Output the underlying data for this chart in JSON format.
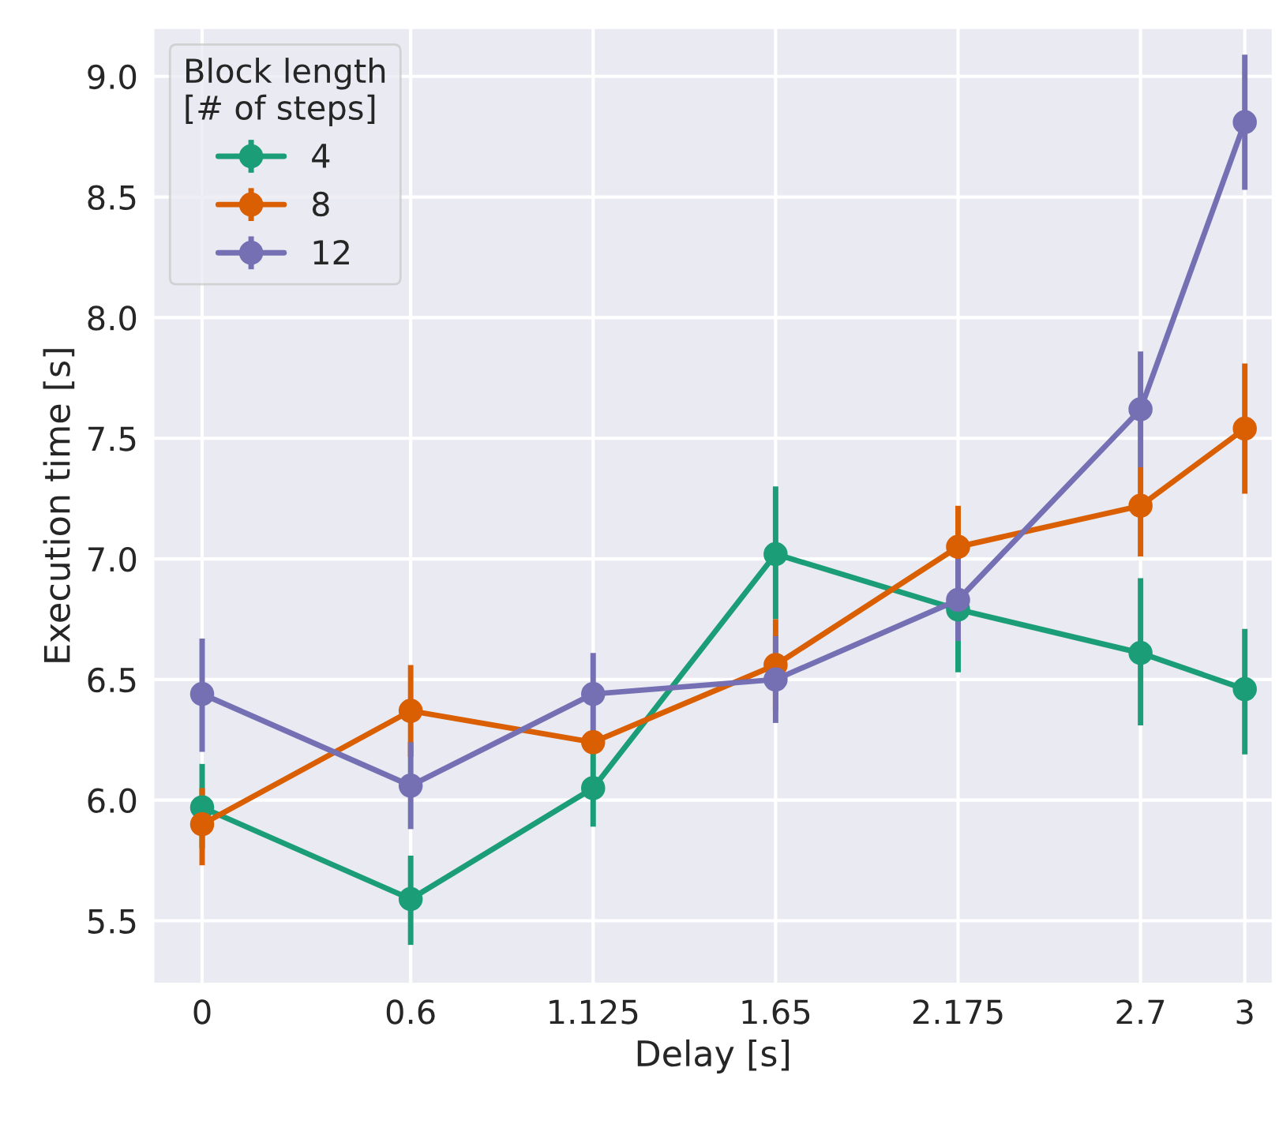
{
  "chart_data": {
    "type": "line",
    "xlabel": "Delay [s]",
    "ylabel": "Execution time [s]",
    "legend_title": "Block length\n[# of steps]",
    "x": [
      0,
      0.6,
      1.125,
      1.65,
      2.175,
      2.7,
      3
    ],
    "series": [
      {
        "name": "4",
        "color": "#1b9e77",
        "values": [
          5.97,
          5.59,
          6.05,
          7.02,
          6.79,
          6.61,
          6.46
        ],
        "errors": [
          [
            5.8,
            6.15
          ],
          [
            5.4,
            5.77
          ],
          [
            5.89,
            6.21
          ],
          [
            6.75,
            7.3
          ],
          [
            6.53,
            6.79
          ],
          [
            6.31,
            6.92
          ],
          [
            6.19,
            6.71
          ]
        ]
      },
      {
        "name": "8",
        "color": "#d95f02",
        "values": [
          5.9,
          6.37,
          6.24,
          6.56,
          7.05,
          7.22,
          7.54
        ],
        "errors": [
          [
            5.73,
            6.05
          ],
          [
            6.18,
            6.56
          ],
          null,
          [
            6.37,
            6.75
          ],
          [
            6.88,
            7.22
          ],
          [
            7.01,
            7.38
          ],
          [
            7.27,
            7.81
          ]
        ]
      },
      {
        "name": "12",
        "color": "#7570b3",
        "values": [
          6.44,
          6.06,
          6.44,
          6.5,
          6.83,
          7.62,
          8.81
        ],
        "errors": [
          [
            6.2,
            6.67
          ],
          [
            5.88,
            6.24
          ],
          [
            6.27,
            6.61
          ],
          [
            6.32,
            6.68
          ],
          [
            6.66,
            7.0
          ],
          [
            7.38,
            7.86
          ],
          [
            8.53,
            9.09
          ]
        ]
      }
    ],
    "xlim": [
      -0.14,
      3.08
    ],
    "xticks": [
      0,
      0.6,
      1.125,
      1.65,
      2.175,
      2.7,
      3
    ],
    "ylim": [
      5.24,
      9.2
    ],
    "yticks": [
      5.5,
      {
        "value": 6,
        "label": "6.0"
      },
      6.5,
      {
        "value": 7,
        "label": "7.0"
      },
      7.5,
      {
        "value": 8,
        "label": "8.0"
      },
      8.5,
      {
        "value": 9,
        "label": "9.0"
      }
    ],
    "grid": true,
    "legend": "top left",
    "marker": "circle",
    "line_style": "solid"
  }
}
